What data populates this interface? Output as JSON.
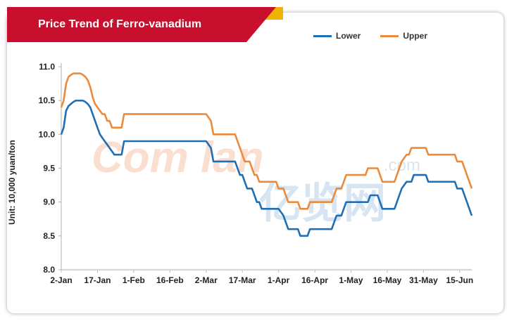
{
  "title": "Price Trend of Ferro-vanadium",
  "colors": {
    "banner_red": "#c8102e",
    "banner_gold": "#f0b400",
    "lower": "#1f6fb5",
    "upper": "#ec8a3b"
  },
  "watermark": {
    "latin": "Com lan",
    "suffix": ".com",
    "cjk": "亿览网"
  },
  "chart_data": {
    "type": "line",
    "ylabel": "Unit: 10,000 yuan/ton",
    "ylim": [
      8.0,
      11.0
    ],
    "yticks": [
      "8.0",
      "8.5",
      "9.0",
      "9.5",
      "10.0",
      "10.5",
      "11.0"
    ],
    "xticks": [
      "2-Jan",
      "17-Jan",
      "1-Feb",
      "16-Feb",
      "2-Mar",
      "17-Mar",
      "1-Apr",
      "16-Apr",
      "1-May",
      "16-May",
      "31-May",
      "15-Jun"
    ],
    "x_range_days": [
      0,
      170
    ],
    "legend_position": "top-right",
    "series": [
      {
        "name": "Lower",
        "points": [
          [
            0,
            10.0
          ],
          [
            1,
            10.1
          ],
          [
            2,
            10.35
          ],
          [
            3,
            10.42
          ],
          [
            4,
            10.45
          ],
          [
            5,
            10.48
          ],
          [
            6,
            10.5
          ],
          [
            7,
            10.5
          ],
          [
            8,
            10.5
          ],
          [
            9,
            10.5
          ],
          [
            10,
            10.48
          ],
          [
            11,
            10.45
          ],
          [
            12,
            10.4
          ],
          [
            13,
            10.3
          ],
          [
            14,
            10.2
          ],
          [
            15,
            10.1
          ],
          [
            16,
            10.0
          ],
          [
            17,
            9.95
          ],
          [
            18,
            9.9
          ],
          [
            19,
            9.85
          ],
          [
            20,
            9.8
          ],
          [
            21,
            9.75
          ],
          [
            22,
            9.7
          ],
          [
            23,
            9.7
          ],
          [
            24,
            9.7
          ],
          [
            25,
            9.7
          ],
          [
            26,
            9.9
          ],
          [
            36,
            9.9
          ],
          [
            46,
            9.9
          ],
          [
            56,
            9.9
          ],
          [
            60,
            9.9
          ],
          [
            62,
            9.8
          ],
          [
            63,
            9.6
          ],
          [
            66,
            9.6
          ],
          [
            72,
            9.6
          ],
          [
            73,
            9.5
          ],
          [
            74,
            9.4
          ],
          [
            75,
            9.4
          ],
          [
            76,
            9.3
          ],
          [
            77,
            9.2
          ],
          [
            79,
            9.2
          ],
          [
            80,
            9.1
          ],
          [
            81,
            9.0
          ],
          [
            82,
            9.0
          ],
          [
            83,
            8.9
          ],
          [
            90,
            8.9
          ],
          [
            91,
            8.85
          ],
          [
            92,
            8.8
          ],
          [
            93,
            8.7
          ],
          [
            94,
            8.6
          ],
          [
            98,
            8.6
          ],
          [
            99,
            8.5
          ],
          [
            102,
            8.5
          ],
          [
            103,
            8.6
          ],
          [
            112,
            8.6
          ],
          [
            113,
            8.7
          ],
          [
            114,
            8.8
          ],
          [
            116,
            8.8
          ],
          [
            117,
            8.9
          ],
          [
            118,
            9.0
          ],
          [
            127,
            9.0
          ],
          [
            128,
            9.1
          ],
          [
            131,
            9.1
          ],
          [
            132,
            9.0
          ],
          [
            133,
            8.9
          ],
          [
            138,
            8.9
          ],
          [
            139,
            9.0
          ],
          [
            140,
            9.1
          ],
          [
            141,
            9.2
          ],
          [
            143,
            9.3
          ],
          [
            145,
            9.3
          ],
          [
            146,
            9.4
          ],
          [
            151,
            9.4
          ],
          [
            152,
            9.3
          ],
          [
            157,
            9.3
          ],
          [
            163,
            9.3
          ],
          [
            164,
            9.2
          ],
          [
            166,
            9.2
          ],
          [
            167,
            9.1
          ],
          [
            170,
            8.8
          ]
        ]
      },
      {
        "name": "Upper",
        "points": [
          [
            0,
            10.4
          ],
          [
            1,
            10.5
          ],
          [
            2,
            10.75
          ],
          [
            3,
            10.85
          ],
          [
            4,
            10.88
          ],
          [
            5,
            10.9
          ],
          [
            6,
            10.9
          ],
          [
            7,
            10.9
          ],
          [
            8,
            10.9
          ],
          [
            9,
            10.88
          ],
          [
            10,
            10.85
          ],
          [
            11,
            10.8
          ],
          [
            12,
            10.7
          ],
          [
            13,
            10.55
          ],
          [
            14,
            10.45
          ],
          [
            15,
            10.4
          ],
          [
            16,
            10.35
          ],
          [
            17,
            10.3
          ],
          [
            18,
            10.3
          ],
          [
            19,
            10.2
          ],
          [
            20,
            10.2
          ],
          [
            21,
            10.1
          ],
          [
            22,
            10.1
          ],
          [
            24,
            10.1
          ],
          [
            25,
            10.1
          ],
          [
            26,
            10.3
          ],
          [
            36,
            10.3
          ],
          [
            46,
            10.3
          ],
          [
            56,
            10.3
          ],
          [
            60,
            10.3
          ],
          [
            62,
            10.2
          ],
          [
            63,
            10.0
          ],
          [
            66,
            10.0
          ],
          [
            72,
            10.0
          ],
          [
            73,
            9.9
          ],
          [
            74,
            9.8
          ],
          [
            75,
            9.7
          ],
          [
            76,
            9.6
          ],
          [
            78,
            9.6
          ],
          [
            79,
            9.5
          ],
          [
            80,
            9.4
          ],
          [
            81,
            9.4
          ],
          [
            82,
            9.3
          ],
          [
            89,
            9.3
          ],
          [
            90,
            9.2
          ],
          [
            92,
            9.2
          ],
          [
            93,
            9.1
          ],
          [
            94,
            9.0
          ],
          [
            98,
            9.0
          ],
          [
            99,
            8.9
          ],
          [
            102,
            8.9
          ],
          [
            103,
            9.0
          ],
          [
            112,
            9.0
          ],
          [
            113,
            9.1
          ],
          [
            114,
            9.2
          ],
          [
            116,
            9.2
          ],
          [
            117,
            9.3
          ],
          [
            118,
            9.4
          ],
          [
            126,
            9.4
          ],
          [
            127,
            9.5
          ],
          [
            131,
            9.5
          ],
          [
            132,
            9.4
          ],
          [
            133,
            9.3
          ],
          [
            138,
            9.3
          ],
          [
            139,
            9.4
          ],
          [
            140,
            9.5
          ],
          [
            141,
            9.6
          ],
          [
            143,
            9.7
          ],
          [
            144,
            9.7
          ],
          [
            145,
            9.8
          ],
          [
            151,
            9.8
          ],
          [
            152,
            9.7
          ],
          [
            157,
            9.7
          ],
          [
            163,
            9.7
          ],
          [
            164,
            9.6
          ],
          [
            166,
            9.6
          ],
          [
            167,
            9.5
          ],
          [
            170,
            9.2
          ]
        ]
      }
    ]
  }
}
